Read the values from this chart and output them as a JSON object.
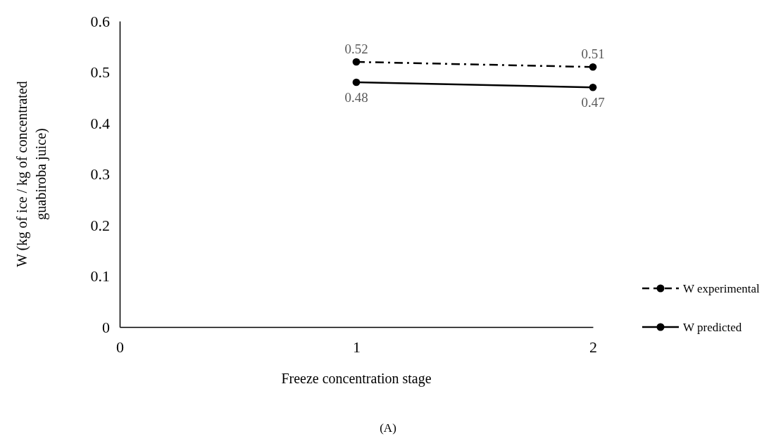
{
  "chart_data": {
    "type": "line",
    "xlabel": "Freeze concentration stage",
    "ylabel": "W (kg of ice / kg of concentrated\nguabiroba juice)",
    "x": [
      1,
      2
    ],
    "series": [
      {
        "name": "W experimental",
        "color": "#000000",
        "values": [
          0.52,
          0.51
        ],
        "line_style": "dashed"
      },
      {
        "name": "W predicted",
        "color": "#000000",
        "values": [
          0.48,
          0.47
        ],
        "line_style": "solid"
      }
    ],
    "xlim": [
      0,
      2
    ],
    "xticks": [
      0,
      1,
      2
    ],
    "ylim": [
      0,
      0.6
    ],
    "yticks": [
      0,
      0.1,
      0.2,
      0.3,
      0.4,
      0.5,
      0.6
    ],
    "grid": false,
    "legend": "right",
    "marker": "circle",
    "data_labels": true,
    "annotations": [
      "(A)"
    ]
  }
}
